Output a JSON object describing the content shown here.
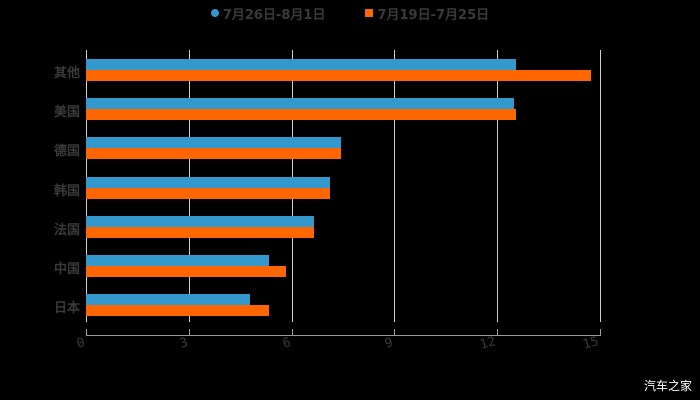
{
  "chart_data": {
    "type": "bar",
    "orientation": "horizontal",
    "title": "",
    "categories": [
      "其他",
      "美国",
      "德国",
      "韩国",
      "法国",
      "中国",
      "日本"
    ],
    "series": [
      {
        "name": "7月26日-8月1日",
        "color": "#3399cc",
        "values": [
          12.55,
          12.49,
          7.44,
          7.12,
          6.65,
          5.34,
          4.79
        ]
      },
      {
        "name": "7月19日-7月25日",
        "color": "#ff6600",
        "values": [
          14.74,
          12.55,
          7.44,
          7.12,
          6.65,
          5.84,
          5.34
        ]
      }
    ],
    "xlabel": "",
    "ylabel": "",
    "xlim": [
      0,
      15
    ],
    "xticks": [
      "0",
      "3",
      "6",
      "9",
      "12",
      "15"
    ],
    "grid": true,
    "legend_position": "top"
  },
  "legend": {
    "s1": "7月26日-8月1日",
    "s2": "7月19日-7月25日"
  },
  "watermark": "汽车之家"
}
